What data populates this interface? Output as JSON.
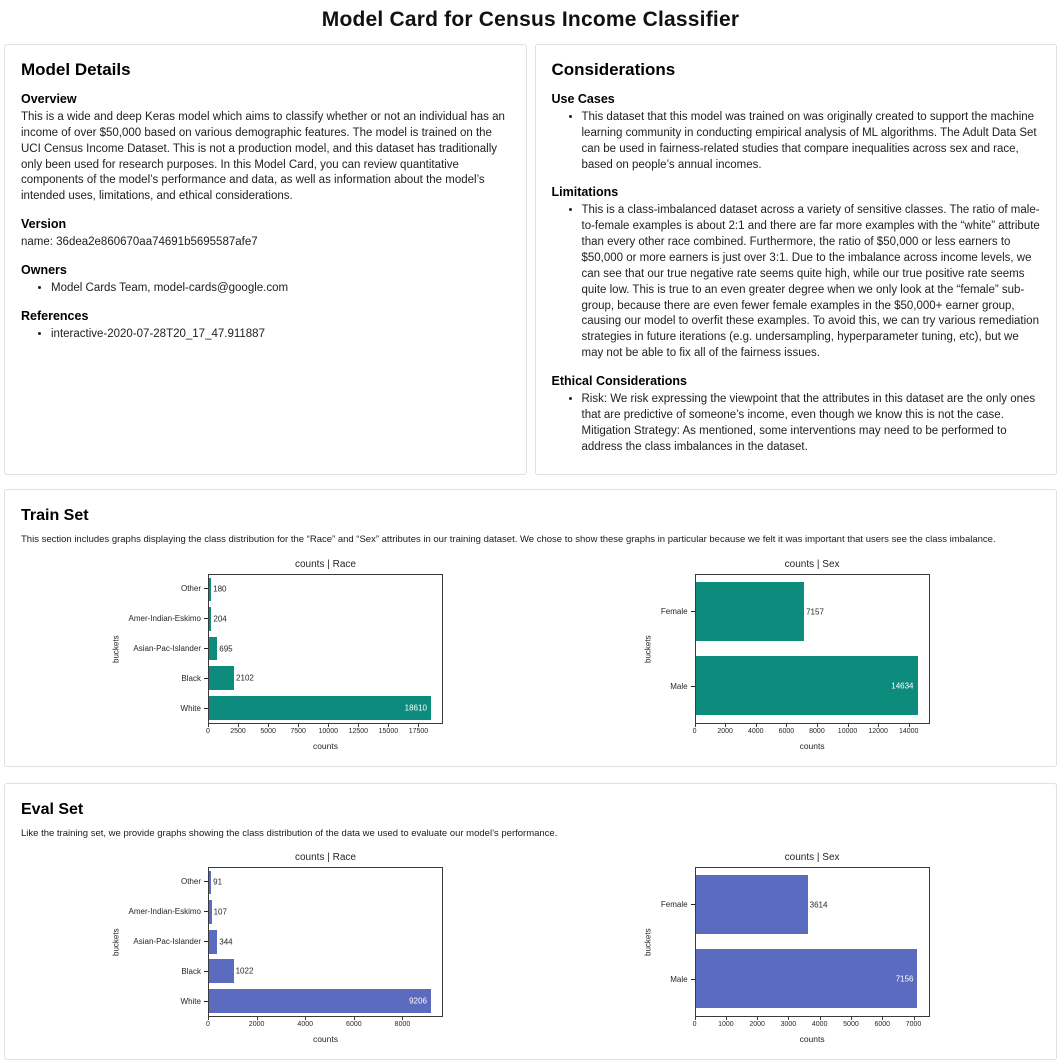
{
  "page": {
    "title": "Model Card for Census Income Classifier"
  },
  "model_details": {
    "title": "Model Details",
    "overview": {
      "heading": "Overview",
      "text": "This is a wide and deep Keras model which aims to classify whether or not an individual has an income of over $50,000 based on various demographic features. The model is trained on the UCI Census Income Dataset. This is not a production model, and this dataset has traditionally only been used for research purposes. In this Model Card, you can review quantitative components of the model’s performance and data, as well as information about the model’s intended uses, limitations, and ethical considerations."
    },
    "version": {
      "heading": "Version",
      "text": "name: 36dea2e860670aa74691b5695587afe7"
    },
    "owners": {
      "heading": "Owners",
      "items": [
        "Model Cards Team, model-cards@google.com"
      ]
    },
    "references": {
      "heading": "References",
      "items": [
        "interactive-2020-07-28T20_17_47.911887"
      ]
    }
  },
  "considerations": {
    "title": "Considerations",
    "use_cases": {
      "heading": "Use Cases",
      "items": [
        "This dataset that this model was trained on was originally created to support the machine learning community in conducting empirical analysis of ML algorithms. The Adult Data Set can be used in fairness-related studies that compare inequalities across sex and race, based on people’s annual incomes."
      ]
    },
    "limitations": {
      "heading": "Limitations",
      "items": [
        "This is a class-imbalanced dataset across a variety of sensitive classes. The ratio of male-to-female examples is about 2:1 and there are far more examples with the “white” attribute than every other race combined. Furthermore, the ratio of $50,000 or less earners to $50,000 or more earners is just over 3:1. Due to the imbalance across income levels, we can see that our true negative rate seems quite high, while our true positive rate seems quite low. This is true to an even greater degree when we only look at the “female” sub-group, because there are even fewer female examples in the $50,000+ earner group, causing our model to overfit these examples. To avoid this, we can try various remediation strategies in future iterations (e.g. undersampling, hyperparameter tuning, etc), but we may not be able to fix all of the fairness issues."
      ]
    },
    "ethical": {
      "heading": "Ethical Considerations",
      "items": [
        "Risk: We risk expressing the viewpoint that the attributes in this dataset are the only ones that are predictive of someone’s income, even though we know this is not the case.\nMitigation Strategy: As mentioned, some interventions may need to be performed to address the class imbalances in the dataset."
      ]
    }
  },
  "train_set": {
    "title": "Train Set",
    "description": "This section includes graphs displaying the class distribution for the “Race” and “Sex” attributes in our training dataset. We chose to show these graphs in particular because we felt it was important that users see the class imbalance."
  },
  "eval_set": {
    "title": "Eval Set",
    "description": "Like the training set, we provide graphs showing the class distribution of the data we used to evaluate our model’s performance."
  },
  "chart_data": [
    {
      "id": "train-race",
      "type": "bar",
      "orientation": "horizontal",
      "title": "counts | Race",
      "xlabel": "counts",
      "ylabel": "buckets",
      "categories": [
        "Other",
        "Amer-Indian-Eskimo",
        "Asian-Pac-Islander",
        "Black",
        "White"
      ],
      "values": [
        180,
        204,
        695,
        2102,
        18610
      ],
      "xticks": [
        0,
        2500,
        5000,
        7500,
        10000,
        12500,
        15000,
        17500
      ],
      "xlim": [
        0,
        19540
      ],
      "grid": false,
      "color": "#0d8c7e"
    },
    {
      "id": "train-sex",
      "type": "bar",
      "orientation": "horizontal",
      "title": "counts | Sex",
      "xlabel": "counts",
      "ylabel": "buckets",
      "categories": [
        "Female",
        "Male"
      ],
      "values": [
        7157,
        14634
      ],
      "xticks": [
        0,
        2000,
        4000,
        6000,
        8000,
        10000,
        12000,
        14000
      ],
      "xlim": [
        0,
        15365
      ],
      "grid": false,
      "color": "#0d8c7e"
    },
    {
      "id": "eval-race",
      "type": "bar",
      "orientation": "horizontal",
      "title": "counts | Race",
      "xlabel": "counts",
      "ylabel": "buckets",
      "categories": [
        "Other",
        "Amer-Indian-Eskimo",
        "Asian-Pac-Islander",
        "Black",
        "White"
      ],
      "values": [
        91,
        107,
        344,
        1022,
        9206
      ],
      "xticks": [
        0,
        2000,
        4000,
        6000,
        8000
      ],
      "xlim": [
        0,
        9666
      ],
      "grid": false,
      "color": "#5b6bc0"
    },
    {
      "id": "eval-sex",
      "type": "bar",
      "orientation": "horizontal",
      "title": "counts | Sex",
      "xlabel": "counts",
      "ylabel": "buckets",
      "categories": [
        "Female",
        "Male"
      ],
      "values": [
        3614,
        7156
      ],
      "xticks": [
        0,
        1000,
        2000,
        3000,
        4000,
        5000,
        6000,
        7000
      ],
      "xlim": [
        0,
        7514
      ],
      "grid": false,
      "color": "#5b6bc0"
    }
  ]
}
